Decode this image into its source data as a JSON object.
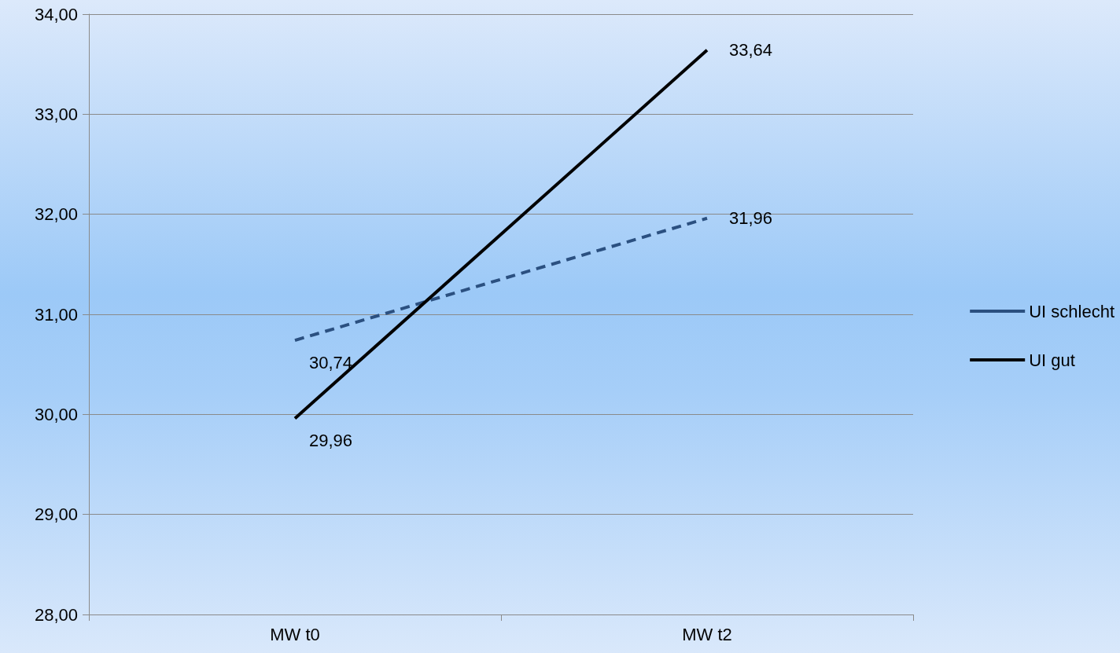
{
  "chart_data": {
    "type": "line",
    "categories": [
      "MW t0",
      "MW t2"
    ],
    "series": [
      {
        "name": "UI schlecht",
        "color": "#2b5080",
        "values": [
          30.74,
          31.96
        ],
        "line_style": "dashed",
        "value_labels": [
          "30,74",
          "31,96"
        ]
      },
      {
        "name": "UI gut",
        "color": "#000000",
        "values": [
          29.96,
          33.64
        ],
        "line_style": "solid",
        "value_labels": [
          "29,96",
          "33,64"
        ]
      }
    ],
    "ylim": [
      28,
      34
    ],
    "yticks": [
      {
        "value": 28,
        "label": "28,00"
      },
      {
        "value": 29,
        "label": "29,00"
      },
      {
        "value": 30,
        "label": "30,00"
      },
      {
        "value": 31,
        "label": "31,00"
      },
      {
        "value": 32,
        "label": "32,00"
      },
      {
        "value": 33,
        "label": "33,00"
      },
      {
        "value": 34,
        "label": "34,00"
      }
    ],
    "grid": "y",
    "legend": "right",
    "marker": "none"
  }
}
